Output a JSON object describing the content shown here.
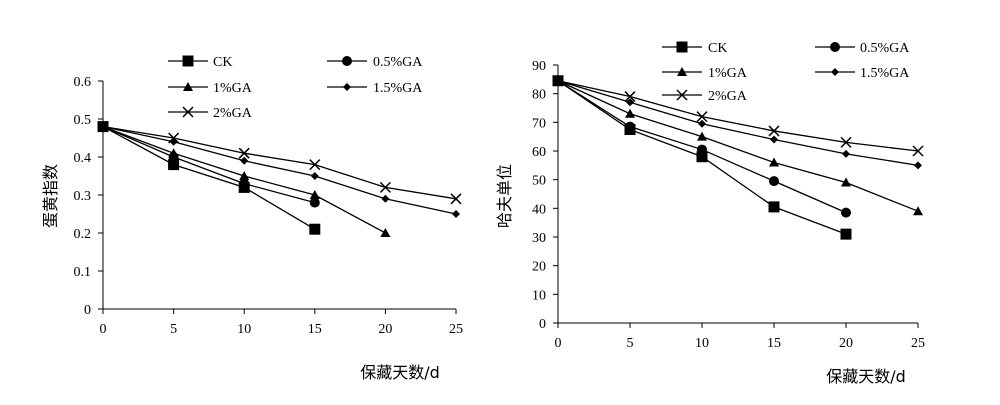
{
  "chart_data": [
    {
      "type": "line",
      "xlabel": "保藏天数/d",
      "ylabel": "蛋黄指数",
      "xlim": [
        0,
        25
      ],
      "ylim": [
        0,
        0.6
      ],
      "x_ticks": [
        "0",
        "5",
        "10",
        "15",
        "20",
        "25"
      ],
      "y_ticks": [
        "0",
        "0.1",
        "0.2",
        "0.3",
        "0.4",
        "0.5",
        "0.6"
      ],
      "grid": false,
      "legend_position": "top",
      "series": [
        {
          "name": "CK",
          "marker": "square",
          "x": [
            0,
            5,
            10,
            15
          ],
          "values": [
            0.48,
            0.38,
            0.32,
            0.21
          ]
        },
        {
          "name": "0.5%GA",
          "marker": "circle",
          "x": [
            0,
            5,
            10,
            15
          ],
          "values": [
            0.48,
            0.4,
            0.33,
            0.28
          ]
        },
        {
          "name": "1%GA",
          "marker": "triangle",
          "x": [
            0,
            5,
            10,
            15,
            20
          ],
          "values": [
            0.48,
            0.41,
            0.35,
            0.3,
            0.2
          ]
        },
        {
          "name": "1.5%GA",
          "marker": "diamond",
          "x": [
            0,
            5,
            10,
            15,
            20,
            25
          ],
          "values": [
            0.48,
            0.44,
            0.39,
            0.35,
            0.29,
            0.25
          ]
        },
        {
          "name": "2%GA",
          "marker": "x",
          "x": [
            0,
            5,
            10,
            15,
            20,
            25
          ],
          "values": [
            0.48,
            0.45,
            0.41,
            0.38,
            0.32,
            0.29
          ]
        }
      ]
    },
    {
      "type": "line",
      "xlabel": "保藏天数/d",
      "ylabel": "哈夫单位",
      "xlim": [
        0,
        25
      ],
      "ylim": [
        0,
        90
      ],
      "x_ticks": [
        "0",
        "5",
        "10",
        "15",
        "20",
        "25"
      ],
      "y_ticks": [
        "0",
        "10",
        "20",
        "30",
        "40",
        "50",
        "60",
        "70",
        "80",
        "90"
      ],
      "grid": false,
      "legend_position": "top",
      "series": [
        {
          "name": "CK",
          "marker": "square",
          "x": [
            0,
            5,
            10,
            15,
            20
          ],
          "values": [
            84.5,
            67.5,
            58,
            40.5,
            31
          ]
        },
        {
          "name": "0.5%GA",
          "marker": "circle",
          "x": [
            0,
            5,
            10,
            15,
            20
          ],
          "values": [
            84.5,
            68.5,
            60.5,
            49.5,
            38.5
          ]
        },
        {
          "name": "1%GA",
          "marker": "triangle",
          "x": [
            0,
            5,
            10,
            15,
            20,
            25
          ],
          "values": [
            84.5,
            73,
            65,
            56,
            49,
            39
          ]
        },
        {
          "name": "1.5%GA",
          "marker": "diamond",
          "x": [
            0,
            5,
            10,
            15,
            20,
            25
          ],
          "values": [
            84.5,
            77,
            69.5,
            64,
            59,
            55
          ]
        },
        {
          "name": "2%GA",
          "marker": "x",
          "x": [
            0,
            5,
            10,
            15,
            20,
            25
          ],
          "values": [
            84.5,
            79,
            72,
            67,
            63,
            60
          ]
        }
      ]
    }
  ]
}
